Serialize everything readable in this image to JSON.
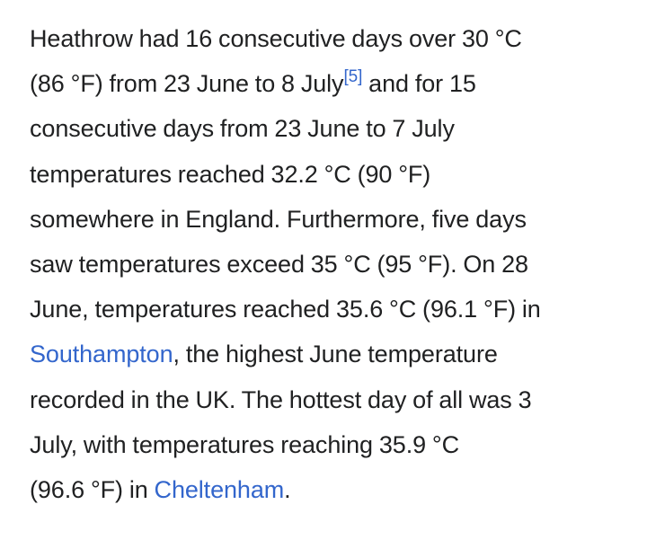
{
  "paragraph": {
    "l1": "Heathrow had 16 consecutive days over 30 °C",
    "l2_pre": "(86 °F) from 23 June to 8 July",
    "ref": "[5]",
    "l2_post": " and for 15",
    "l3": "consecutive days from 23 June to 7 July",
    "l4": "temperatures reached 32.2 °C (90 °F)",
    "l5": "somewhere in England. Furthermore, five days",
    "l6": "saw temperatures exceed 35 °C (95 °F). On 28",
    "l7": "June, temperatures reached 35.6 °C (96.1 °F) in",
    "l8_link": "Southampton",
    "l8_post": ", the highest June temperature",
    "l9": "recorded in the UK. The hottest day of all was 3",
    "l10": "July, with temperatures reaching 35.9 °C",
    "l11_pre": "(96.6 °F) in ",
    "l11_link": "Cheltenham",
    "l11_post": "."
  },
  "colors": {
    "text": "#202122",
    "link": "#3366cc",
    "background": "#ffffff"
  }
}
